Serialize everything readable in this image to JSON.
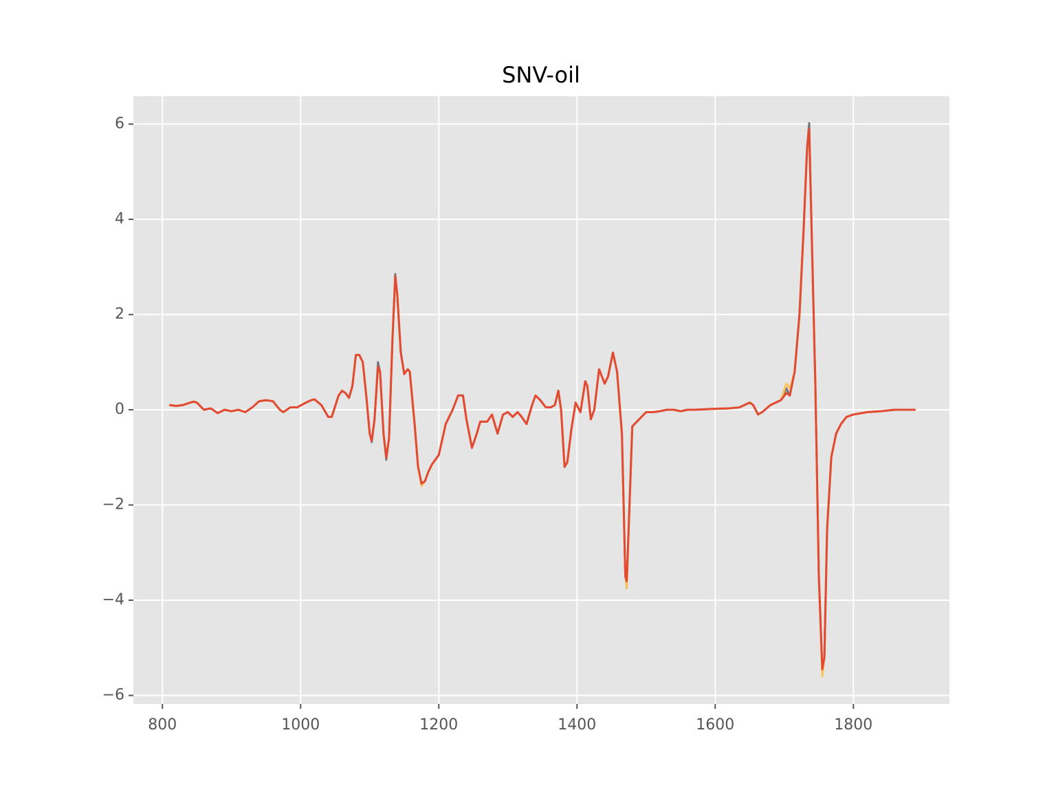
{
  "chart_data": {
    "type": "line",
    "title": "SNV-oil",
    "x": [
      810,
      820,
      830,
      840,
      845,
      850,
      860,
      870,
      880,
      890,
      900,
      910,
      920,
      930,
      940,
      950,
      960,
      970,
      975,
      985,
      995,
      1005,
      1015,
      1020,
      1030,
      1040,
      1045,
      1055,
      1060,
      1065,
      1070,
      1075,
      1080,
      1085,
      1090,
      1095,
      1100,
      1103,
      1107,
      1112,
      1115,
      1120,
      1124,
      1128,
      1133,
      1137,
      1140,
      1145,
      1150,
      1155,
      1158,
      1165,
      1170,
      1175,
      1180,
      1185,
      1190,
      1200,
      1210,
      1220,
      1228,
      1235,
      1240,
      1248,
      1255,
      1260,
      1270,
      1277,
      1285,
      1293,
      1300,
      1307,
      1314,
      1320,
      1327,
      1335,
      1340,
      1347,
      1355,
      1362,
      1368,
      1373,
      1377,
      1382,
      1386,
      1392,
      1398,
      1405,
      1412,
      1415,
      1420,
      1425,
      1432,
      1440,
      1445,
      1452,
      1458,
      1465,
      1470,
      1472,
      1476,
      1480,
      1490,
      1500,
      1510,
      1520,
      1530,
      1540,
      1550,
      1560,
      1570,
      1600,
      1620,
      1635,
      1650,
      1655,
      1662,
      1668,
      1680,
      1695,
      1703,
      1708,
      1715,
      1722,
      1728,
      1733,
      1736,
      1740,
      1745,
      1750,
      1755,
      1758,
      1762,
      1768,
      1775,
      1782,
      1790,
      1800,
      1820,
      1840,
      1860,
      1880,
      1890
    ],
    "series": [
      {
        "color": "#777777",
        "values": [
          0.1,
          0.08,
          0.1,
          0.15,
          0.17,
          0.15,
          0,
          0.03,
          -0.07,
          0,
          -0.03,
          0,
          -0.05,
          0.05,
          0.18,
          0.2,
          0.18,
          0,
          -0.05,
          0.05,
          0.05,
          0.13,
          0.2,
          0.22,
          0.1,
          -0.15,
          -0.15,
          0.3,
          0.4,
          0.35,
          0.25,
          0.5,
          1.15,
          1.15,
          1,
          0.3,
          -0.5,
          -0.68,
          -0.2,
          1.0,
          0.8,
          -0.5,
          -1.05,
          -0.6,
          1.5,
          2.85,
          2.4,
          1.2,
          0.75,
          0.85,
          0.8,
          -0.3,
          -1.2,
          -1.55,
          -1.5,
          -1.3,
          -1.15,
          -0.95,
          -0.3,
          0,
          0.3,
          0.3,
          -0.2,
          -0.8,
          -0.5,
          -0.25,
          -0.25,
          -0.1,
          -0.5,
          -0.1,
          -0.05,
          -0.15,
          -0.05,
          -0.15,
          -0.3,
          0.1,
          0.3,
          0.2,
          0.05,
          0.05,
          0.1,
          0.4,
          0,
          -1.2,
          -1.1,
          -0.4,
          0.15,
          -0.05,
          0.6,
          0.5,
          -0.2,
          0,
          0.85,
          0.55,
          0.7,
          1.2,
          0.8,
          -0.5,
          -3.5,
          -3.65,
          -2,
          -0.35,
          -0.2,
          -0.05,
          -0.05,
          -0.03,
          0,
          0,
          -0.03,
          0,
          0,
          0.02,
          0.03,
          0.05,
          0.15,
          0.1,
          -0.1,
          -0.05,
          0.1,
          0.2,
          0.45,
          0.3,
          0.8,
          2,
          3.8,
          5.5,
          6.02,
          3.5,
          0.5,
          -3.5,
          -5.5,
          -5.2,
          -2.5,
          -1,
          -0.5,
          -0.3,
          -0.15,
          -0.1,
          -0.05,
          -0.03,
          0,
          0,
          0
        ]
      },
      {
        "color": "#FBC15E",
        "values": [
          0.1,
          0.08,
          0.1,
          0.15,
          0.17,
          0.15,
          0,
          0.03,
          -0.07,
          0,
          -0.03,
          0,
          -0.05,
          0.05,
          0.18,
          0.2,
          0.18,
          0,
          -0.05,
          0.05,
          0.05,
          0.13,
          0.2,
          0.22,
          0.1,
          -0.15,
          -0.15,
          0.3,
          0.4,
          0.35,
          0.25,
          0.5,
          1.15,
          1.15,
          1,
          0.3,
          -0.5,
          -0.65,
          -0.2,
          0.9,
          0.8,
          -0.5,
          -1,
          -0.6,
          1.5,
          2.8,
          2.4,
          1.2,
          0.75,
          0.85,
          0.8,
          -0.3,
          -1.2,
          -1.6,
          -1.5,
          -1.3,
          -1.15,
          -0.95,
          -0.3,
          0,
          0.3,
          0.3,
          -0.2,
          -0.8,
          -0.5,
          -0.25,
          -0.25,
          -0.1,
          -0.5,
          -0.1,
          -0.05,
          -0.15,
          -0.05,
          -0.15,
          -0.3,
          0.1,
          0.3,
          0.2,
          0.05,
          0.05,
          0.1,
          0.4,
          0,
          -1.2,
          -1.1,
          -0.4,
          0.15,
          -0.05,
          0.6,
          0.5,
          -0.2,
          0,
          0.85,
          0.55,
          0.7,
          1.2,
          0.8,
          -0.5,
          -3.5,
          -3.75,
          -2,
          -0.35,
          -0.2,
          -0.05,
          -0.05,
          -0.03,
          0,
          0,
          -0.03,
          0,
          0,
          0.02,
          0.03,
          0.05,
          0.15,
          0.1,
          -0.1,
          -0.05,
          0.1,
          0.2,
          0.55,
          0.45,
          0.8,
          2,
          3.8,
          5.5,
          5.85,
          3.5,
          0.5,
          -3.5,
          -5.6,
          -5.2,
          -2.5,
          -1,
          -0.5,
          -0.3,
          -0.15,
          -0.1,
          -0.05,
          -0.03,
          0,
          0,
          0
        ]
      },
      {
        "color": "#E24A33",
        "values": [
          0.1,
          0.08,
          0.1,
          0.15,
          0.17,
          0.15,
          0,
          0.03,
          -0.07,
          0,
          -0.03,
          0,
          -0.05,
          0.05,
          0.18,
          0.2,
          0.18,
          0,
          -0.05,
          0.05,
          0.05,
          0.13,
          0.2,
          0.22,
          0.1,
          -0.15,
          -0.15,
          0.3,
          0.4,
          0.35,
          0.25,
          0.5,
          1.15,
          1.15,
          1,
          0.3,
          -0.5,
          -0.65,
          -0.2,
          0.9,
          0.8,
          -0.5,
          -1,
          -0.6,
          1.5,
          2.8,
          2.4,
          1.2,
          0.75,
          0.85,
          0.8,
          -0.3,
          -1.2,
          -1.55,
          -1.5,
          -1.3,
          -1.15,
          -0.95,
          -0.3,
          0,
          0.3,
          0.3,
          -0.2,
          -0.8,
          -0.5,
          -0.25,
          -0.25,
          -0.1,
          -0.5,
          -0.1,
          -0.05,
          -0.15,
          -0.05,
          -0.15,
          -0.3,
          0.1,
          0.3,
          0.2,
          0.05,
          0.05,
          0.1,
          0.4,
          0,
          -1.2,
          -1.1,
          -0.4,
          0.15,
          -0.05,
          0.6,
          0.5,
          -0.2,
          0,
          0.85,
          0.55,
          0.7,
          1.2,
          0.8,
          -0.5,
          -3.5,
          -3.6,
          -2,
          -0.35,
          -0.2,
          -0.05,
          -0.05,
          -0.03,
          0,
          0,
          -0.03,
          0,
          0,
          0.02,
          0.03,
          0.05,
          0.15,
          0.1,
          -0.1,
          -0.05,
          0.1,
          0.2,
          0.35,
          0.3,
          0.8,
          2,
          3.8,
          5.5,
          5.9,
          3.5,
          0.5,
          -3.5,
          -5.45,
          -5.2,
          -2.5,
          -1,
          -0.5,
          -0.3,
          -0.15,
          -0.1,
          -0.05,
          -0.03,
          0,
          0,
          0
        ]
      }
    ],
    "xlim": [
      758,
      1939
    ],
    "ylim": [
      -6.18,
      6.585
    ],
    "xticks": [
      800,
      1000,
      1200,
      1400,
      1600,
      1800
    ],
    "yticks": [
      {
        "value": -6,
        "label": "−6"
      },
      {
        "value": -4,
        "label": "−4"
      },
      {
        "value": -2,
        "label": "−2"
      },
      0,
      2,
      4,
      6
    ],
    "grid": true
  }
}
